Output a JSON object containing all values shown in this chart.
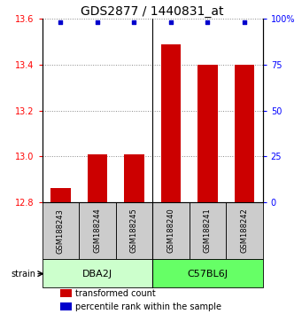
{
  "title": "GDS2877 / 1440831_at",
  "samples": [
    "GSM188243",
    "GSM188244",
    "GSM188245",
    "GSM188240",
    "GSM188241",
    "GSM188242"
  ],
  "groups": [
    {
      "name": "DBA2J",
      "color": "#ccffcc",
      "n": 3
    },
    {
      "name": "C57BL6J",
      "color": "#66ff66",
      "n": 3
    }
  ],
  "bar_values": [
    12.86,
    13.01,
    13.01,
    13.49,
    13.4,
    13.4
  ],
  "bar_bottom": 12.8,
  "percentile_values": [
    98,
    98,
    98,
    98,
    98,
    98
  ],
  "ylim_left": [
    12.8,
    13.6
  ],
  "ylim_right": [
    0,
    100
  ],
  "yticks_left": [
    12.8,
    13.0,
    13.2,
    13.4,
    13.6
  ],
  "yticks_right": [
    0,
    25,
    50,
    75,
    100
  ],
  "bar_color": "#cc0000",
  "dot_color": "#0000cc",
  "gray_box_color": "#cccccc",
  "title_fontsize": 10,
  "tick_fontsize": 7,
  "sample_fontsize": 6,
  "group_label_fontsize": 8,
  "legend_fontsize": 7,
  "strain_label": "strain",
  "legend_items": [
    {
      "color": "#cc0000",
      "label": "transformed count"
    },
    {
      "color": "#0000cc",
      "label": "percentile rank within the sample"
    }
  ]
}
